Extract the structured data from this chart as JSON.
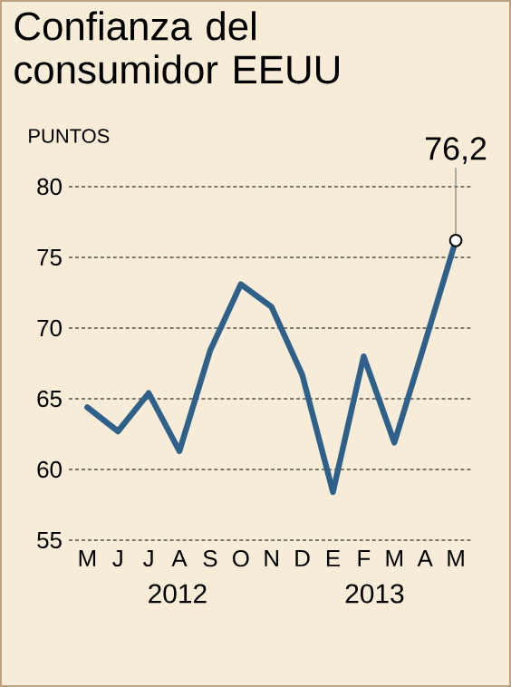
{
  "chart_data": {
    "type": "line",
    "title": "Confianza del consumidor EEUU",
    "ylabel": "PUNTOS",
    "categories": [
      "M",
      "J",
      "J",
      "A",
      "S",
      "O",
      "N",
      "D",
      "E",
      "F",
      "M",
      "A",
      "M"
    ],
    "values": [
      64.4,
      62.7,
      65.4,
      61.3,
      68.4,
      73.1,
      71.5,
      66.7,
      58.4,
      68.0,
      61.9,
      69.0,
      76.2
    ],
    "value_labels": [
      null,
      null,
      null,
      null,
      null,
      null,
      null,
      null,
      null,
      null,
      null,
      null,
      "76,2"
    ],
    "color": "#2e6089",
    "ylim": [
      55,
      80
    ],
    "yticks": [
      55,
      60,
      65,
      70,
      75,
      80
    ],
    "grid": "y",
    "annotations": [
      "2012",
      "2013"
    ]
  }
}
